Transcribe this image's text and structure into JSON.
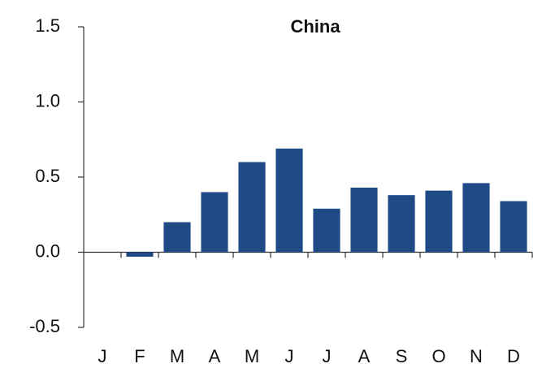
{
  "chart_data": {
    "type": "bar",
    "title": "China",
    "categories": [
      "J",
      "F",
      "M",
      "A",
      "M",
      "J",
      "J",
      "A",
      "S",
      "O",
      "N",
      "D"
    ],
    "values": [
      0,
      -0.03,
      0.2,
      0.4,
      0.6,
      0.69,
      0.29,
      0.43,
      0.38,
      0.41,
      0.46,
      0.34
    ],
    "color": "#1e4a86",
    "ylim": [
      -0.5,
      1.5
    ],
    "yticks": [
      -0.5,
      {
        "value": 0,
        "label": "0.0"
      },
      0.5,
      {
        "value": 1,
        "label": "1.0"
      },
      1.5
    ],
    "grid": false
  }
}
